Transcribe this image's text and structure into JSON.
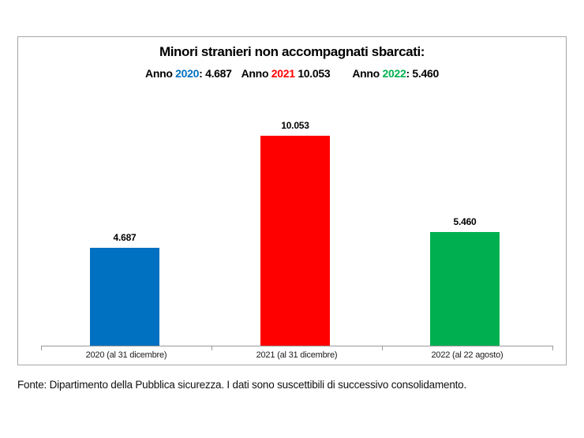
{
  "chart_data": {
    "type": "bar",
    "title": "Minori stranieri non accompagnati sbarcati:",
    "categories": [
      "2020 (al 31 dicembre)",
      "2021 (al 31 dicembre)",
      "2022 (al 22 agosto)"
    ],
    "values": [
      4687,
      10053,
      5460
    ],
    "value_labels": [
      "4.687",
      "10.053",
      "5.460"
    ],
    "colors": [
      "#0070C0",
      "#FF0000",
      "#00B050"
    ],
    "xlabel": "",
    "ylabel": "",
    "ylim": [
      0,
      10500
    ],
    "grid": false,
    "legend_position": "none",
    "axis_color": "#9A9A9A",
    "box_border_color": "#A6A6A6"
  },
  "subtitle": {
    "groups": [
      {
        "prefix": "Anno ",
        "year": "2020",
        "year_color": "#0070C0",
        "value_text": ": 4.687"
      },
      {
        "prefix": "Anno ",
        "year": "2021",
        "year_color": "#FF0000",
        "value_text": " 10.053"
      },
      {
        "prefix": "Anno ",
        "year": "2022",
        "year_color": "#00B050",
        "value_text": ": 5.460"
      }
    ]
  },
  "footer": {
    "text": "Fonte: Dipartimento della Pubblica sicurezza. I dati sono suscettibili di successivo consolidamento."
  }
}
